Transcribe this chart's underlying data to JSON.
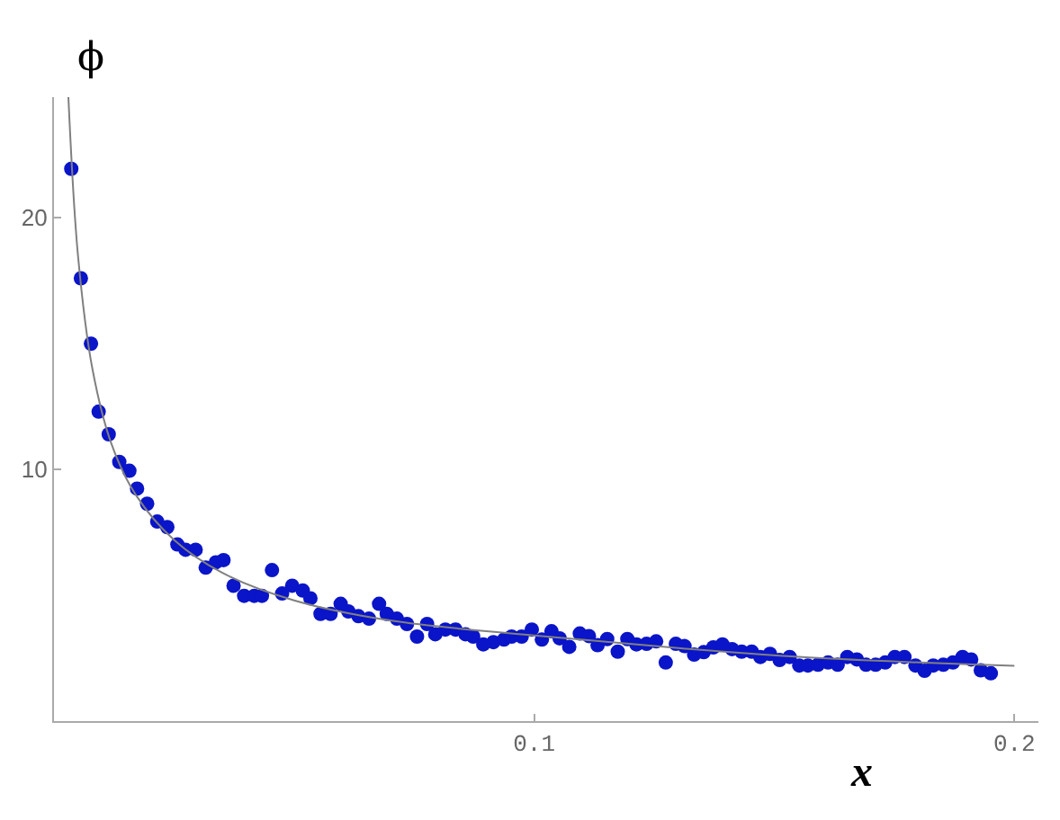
{
  "chart_data": {
    "type": "scatter",
    "xlabel": "x",
    "ylabel": "ϕ",
    "xlim": [
      0,
      0.205
    ],
    "ylim": [
      0,
      24.8
    ],
    "xticks": [
      0.1,
      0.2
    ],
    "yticks": [
      10,
      20
    ],
    "series": [
      {
        "color": "#0a14c8",
        "marker": "circle",
        "x": [
          0.0036,
          0.0056,
          0.0077,
          0.0093,
          0.0114,
          0.0136,
          0.0157,
          0.0173,
          0.0194,
          0.0215,
          0.0236,
          0.0257,
          0.0274,
          0.0295,
          0.0316,
          0.0337,
          0.0353,
          0.0374,
          0.0396,
          0.0417,
          0.0433,
          0.0454,
          0.0475,
          0.0496,
          0.0518,
          0.0534,
          0.0555,
          0.0576,
          0.0597,
          0.0613,
          0.0634,
          0.0656,
          0.0677,
          0.0693,
          0.0714,
          0.0735,
          0.0756,
          0.0777,
          0.0794,
          0.0815,
          0.0836,
          0.0857,
          0.0873,
          0.0894,
          0.0915,
          0.0937,
          0.0953,
          0.0974,
          0.0995,
          0.1016,
          0.1036,
          0.1053,
          0.1073,
          0.1095,
          0.1114,
          0.1132,
          0.1152,
          0.1174,
          0.1194,
          0.1213,
          0.1234,
          0.1254,
          0.1274,
          0.1295,
          0.1313,
          0.1333,
          0.1353,
          0.1373,
          0.1392,
          0.1412,
          0.1432,
          0.1453,
          0.1471,
          0.1491,
          0.1511,
          0.1532,
          0.1552,
          0.157,
          0.1591,
          0.1612,
          0.1632,
          0.1652,
          0.1672,
          0.1691,
          0.1711,
          0.1731,
          0.1751,
          0.1771,
          0.1794,
          0.1813,
          0.1831,
          0.1852,
          0.1872,
          0.1892,
          0.191,
          0.193,
          0.1951
        ],
        "values": [
          21.95,
          17.6,
          15.0,
          12.3,
          11.4,
          10.3,
          9.95,
          9.24,
          8.64,
          7.93,
          7.71,
          7.02,
          6.81,
          6.81,
          6.1,
          6.31,
          6.4,
          5.38,
          4.98,
          4.98,
          4.98,
          6.0,
          5.07,
          5.38,
          5.19,
          4.88,
          4.26,
          4.26,
          4.66,
          4.36,
          4.17,
          4.07,
          4.66,
          4.26,
          4.07,
          3.86,
          3.36,
          3.86,
          3.45,
          3.64,
          3.64,
          3.45,
          3.36,
          3.05,
          3.14,
          3.24,
          3.36,
          3.36,
          3.64,
          3.24,
          3.57,
          3.29,
          2.95,
          3.48,
          3.38,
          3.02,
          3.26,
          2.76,
          3.26,
          3.05,
          3.07,
          3.17,
          2.33,
          3.07,
          2.98,
          2.64,
          2.74,
          2.93,
          3.05,
          2.86,
          2.76,
          2.76,
          2.55,
          2.67,
          2.43,
          2.55,
          2.21,
          2.21,
          2.24,
          2.33,
          2.24,
          2.55,
          2.45,
          2.24,
          2.24,
          2.33,
          2.55,
          2.55,
          2.21,
          2.0,
          2.21,
          2.24,
          2.33,
          2.55,
          2.45,
          2.02,
          1.9
        ]
      },
      {
        "type": "line",
        "color": "#808080",
        "marker": "none",
        "line_style": "solid",
        "x": [
          0.003,
          0.005,
          0.008,
          0.012,
          0.017,
          0.025,
          0.035,
          0.05,
          0.07,
          0.1,
          0.13,
          0.16,
          0.2
        ],
        "values": [
          24.8,
          18.5,
          14.0,
          11.0,
          9.0,
          7.2,
          5.9,
          4.8,
          4.0,
          3.4,
          2.9,
          2.5,
          2.2
        ]
      }
    ]
  }
}
